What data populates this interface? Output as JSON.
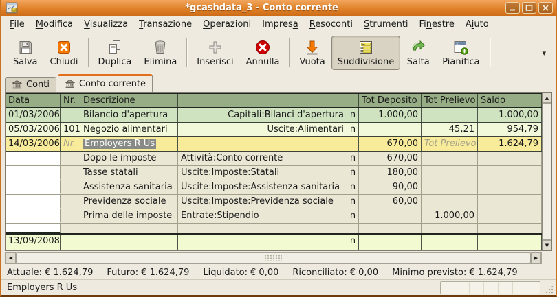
{
  "window": {
    "title": "*gcashdata_3 - Conto corrente",
    "app_icon": "gnucash-icon",
    "buttons": [
      {
        "name": "minimize-button",
        "icon": "minimize-icon"
      },
      {
        "name": "maximize-button",
        "icon": "maximize-icon"
      },
      {
        "name": "close-button",
        "icon": "close-window-icon"
      }
    ]
  },
  "menu": {
    "items": [
      {
        "label": "File",
        "accel": 0
      },
      {
        "label": "Modifica",
        "accel": 0
      },
      {
        "label": "Visualizza",
        "accel": 0
      },
      {
        "label": "Transazione",
        "accel": 0
      },
      {
        "label": "Operazioni",
        "accel": 0
      },
      {
        "label": "Impresa",
        "accel": 6
      },
      {
        "label": "Resoconti",
        "accel": 0
      },
      {
        "label": "Strumenti",
        "accel": 0
      },
      {
        "label": "Finestre",
        "accel": 2
      },
      {
        "label": "Aiuto",
        "accel": 1
      }
    ]
  },
  "toolbar": {
    "items": [
      {
        "type": "button",
        "label": "Salva",
        "icon": "save-icon"
      },
      {
        "type": "button",
        "label": "Chiudi",
        "icon": "close-tab-icon"
      },
      {
        "type": "separator"
      },
      {
        "type": "button",
        "label": "Duplica",
        "icon": "duplicate-icon"
      },
      {
        "type": "button",
        "label": "Elimina",
        "icon": "delete-icon"
      },
      {
        "type": "separator"
      },
      {
        "type": "button",
        "label": "Inserisci",
        "icon": "insert-icon"
      },
      {
        "type": "button",
        "label": "Annulla",
        "icon": "cancel-icon"
      },
      {
        "type": "separator"
      },
      {
        "type": "button",
        "label": "Vuota",
        "icon": "blank-transaction-icon"
      },
      {
        "type": "button",
        "label": "Suddivisione",
        "icon": "split-icon",
        "pressed": true
      },
      {
        "type": "button",
        "label": "Salta",
        "icon": "jump-icon"
      },
      {
        "type": "button",
        "label": "Pianifica",
        "icon": "schedule-icon"
      },
      {
        "type": "separator"
      }
    ],
    "overflow_arrow": "▾"
  },
  "tabs": [
    {
      "label": "Conti",
      "icon": "bank-icon",
      "active": false
    },
    {
      "label": "Conto corrente",
      "icon": "bank-icon",
      "active": true
    }
  ],
  "register": {
    "columns": [
      "Data",
      "Nr.",
      "Descrizione",
      "",
      "",
      "Tot Deposito",
      "Tot Prelievo",
      "Saldo"
    ],
    "rows": [
      {
        "kind": "txn1",
        "date": "01/03/2006",
        "nr": "",
        "desc": "Bilancio d'apertura",
        "transfer": "Capitali:Bilanci d'apertura",
        "rec": "n",
        "deposit": "1.000,00",
        "withdrawal": "",
        "balance": "1.000,00"
      },
      {
        "kind": "txn2",
        "date": "05/03/2006",
        "nr": "101",
        "desc": "Negozio alimentari",
        "transfer": "Uscite:Alimentari",
        "rec": "n",
        "deposit": "",
        "withdrawal": "45,21",
        "balance": "954,79"
      },
      {
        "kind": "selected",
        "date": "14/03/2006",
        "nr_placeholder": "Nr.",
        "desc": "Employers R Us",
        "desc_selected": true,
        "transfer": "",
        "rec": "",
        "deposit": "670,00",
        "withdrawal_placeholder": "Tot Prelievo",
        "balance": "1.624,79"
      },
      {
        "kind": "split",
        "desc": "Dopo le imposte",
        "transfer": "Attività:Conto corrente",
        "rec": "n",
        "deposit": "670,00"
      },
      {
        "kind": "split",
        "desc": "Tasse statali",
        "transfer": "Uscite:Imposte:Statali",
        "rec": "n",
        "deposit": "180,00"
      },
      {
        "kind": "split",
        "desc": "Assistenza sanitaria",
        "transfer": "Uscite:Imposte:Assistenza sanitaria",
        "rec": "n",
        "deposit": "90,00"
      },
      {
        "kind": "split",
        "desc": "Previdenza sociale",
        "transfer": "Uscite:Imposte:Previdenza sociale",
        "rec": "n",
        "deposit": "60,00"
      },
      {
        "kind": "split",
        "desc": "Prima delle imposte",
        "transfer": "Entrate:Stipendio",
        "rec": "n",
        "withdrawal": "1.000,00"
      },
      {
        "kind": "split-empty"
      },
      {
        "kind": "new",
        "date": "13/09/2008",
        "rec": "n"
      }
    ]
  },
  "summary": {
    "items": [
      {
        "label": "Attuale:",
        "value": "€ 1.624,79"
      },
      {
        "label": "Futuro:",
        "value": "€ 1.624,79"
      },
      {
        "label": "Liquidato:",
        "value": "€ 0,00"
      },
      {
        "label": "Riconciliato:",
        "value": "€ 0,00"
      },
      {
        "label": "Minimo previsto:",
        "value": "€ 1.624,79"
      }
    ]
  },
  "statusbar": {
    "message": "Employers R Us"
  },
  "colors": {
    "titlebar_orange": "#e08229",
    "active_tab_accent": "#e26f1b",
    "header_green": "#97ad85",
    "row_green": "#cfe3c1",
    "row_pale_green": "#f2f9da",
    "row_selected_yellow": "#f8ec9b",
    "row_split_beige": "#ebe7d5",
    "row_new_green": "#f1fad1",
    "selection_gray": "#888a85",
    "cancel_red": "#cc0000",
    "toolbar_orange": "#f57900"
  }
}
